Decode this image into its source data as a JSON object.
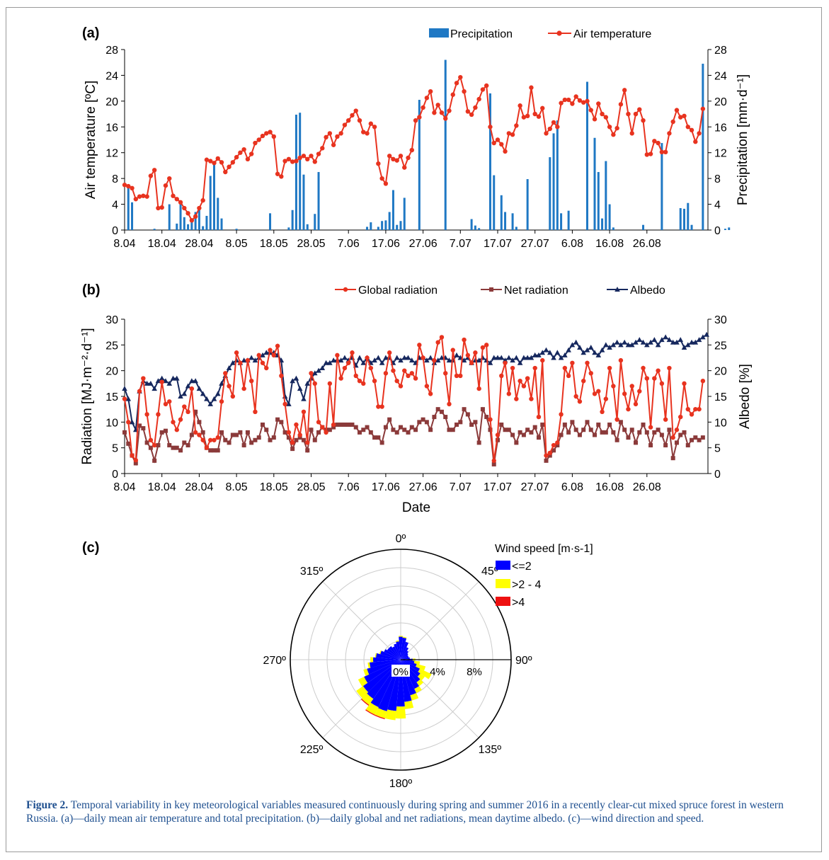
{
  "colors": {
    "precip": "#1f78c4",
    "temp": "#e8331f",
    "global": "#e8331f",
    "net": "#8b3a3a",
    "albedo": "#16285e",
    "wind_low": "#0000ff",
    "wind_mid": "#ffff00",
    "wind_high": "#ee1111",
    "caption": "#1e4f8f"
  },
  "date_ticks": [
    "8.04",
    "18.04",
    "28.04",
    "8.05",
    "18.05",
    "28.05",
    "7.06",
    "17.06",
    "27.06",
    "7.07",
    "17.07",
    "27.07",
    "6.08",
    "16.08",
    "26.08"
  ],
  "caption": {
    "label": "Figure 2.",
    "text": "Temporal variability in key meteorological variables measured continuously during spring and summer 2016 in a recently clear-cut mixed spruce forest in western Russia. (a)—daily mean air temperature and total precipitation. (b)—daily global and net radiations, mean daytime albedo. (c)—wind direction and speed."
  },
  "chart_data": [
    {
      "panel": "(a)",
      "type": "bar+line",
      "x_type": "date",
      "x_start": "8.04",
      "x_end": "26.08",
      "x_ticks": [
        "8.04",
        "18.04",
        "28.04",
        "8.05",
        "18.05",
        "28.05",
        "7.06",
        "17.06",
        "27.06",
        "7.07",
        "17.07",
        "27.07",
        "6.08",
        "16.08",
        "26.08"
      ],
      "ylabel": "Air temperature [ºC]",
      "y2label": "Precipitation [mm·d⁻¹]",
      "ylim": [
        0,
        28
      ],
      "y2lim": [
        0,
        28
      ],
      "yticks": [
        0,
        4,
        8,
        12,
        16,
        20,
        24,
        28
      ],
      "legend": [
        "Precipitation",
        "Air temperature"
      ],
      "series": [
        {
          "name": "Air temperature",
          "kind": "line",
          "values": [
            7.0,
            6.8,
            6.5,
            4.8,
            5.2,
            5.3,
            5.2,
            8.4,
            9.3,
            3.4,
            3.5,
            6.9,
            8.0,
            5.3,
            4.8,
            4.3,
            3.4,
            2.6,
            1.5,
            2.1,
            3.4,
            4.6,
            10.9,
            10.7,
            10.4,
            11.1,
            10.5,
            9.0,
            9.8,
            10.5,
            11.3,
            12.0,
            12.5,
            11.0,
            11.8,
            13.5,
            14.0,
            14.6,
            15.0,
            15.2,
            14.5,
            8.7,
            8.3,
            10.7,
            11.0,
            10.6,
            10.7,
            11.2,
            11.5,
            11.0,
            11.5,
            10.6,
            11.8,
            12.7,
            14.4,
            15.0,
            13.2,
            14.5,
            15.0,
            16.3,
            17.0,
            17.8,
            18.5,
            17.0,
            15.2,
            15.0,
            16.5,
            16.0,
            10.3,
            8.0,
            7.2,
            11.5,
            11.0,
            10.8,
            11.5,
            9.7,
            11.2,
            12.4,
            17.0,
            17.5,
            19.0,
            20.5,
            21.5,
            18.2,
            19.4,
            18.2,
            17.3,
            18.5,
            21.0,
            22.8,
            23.7,
            21.5,
            18.4,
            17.9,
            19.0,
            20.3,
            21.8,
            22.4,
            16.0,
            13.5,
            14.0,
            13.3,
            12.2,
            15.0,
            14.8,
            16.2,
            19.3,
            17.5,
            17.7,
            22.1,
            18.0,
            17.6,
            18.9,
            15.0,
            15.7,
            16.7,
            16.0,
            19.7,
            20.2,
            20.2,
            19.6,
            20.7,
            20.1,
            19.8,
            20.0,
            18.6,
            17.2,
            19.6,
            18.0,
            17.5,
            16.0,
            14.8,
            15.8,
            19.5,
            21.7,
            18.0,
            15.0,
            18.0,
            18.7,
            17.0,
            11.7,
            11.8,
            13.8,
            13.5,
            12.1,
            12.1,
            15.0,
            16.8,
            18.6,
            17.5,
            17.7,
            16.0,
            15.5,
            13.7,
            15.0,
            18.8
          ]
        },
        {
          "name": "Precipitation",
          "kind": "bar",
          "values": [
            0,
            6.5,
            4.3,
            0,
            0,
            0,
            0,
            0,
            0.2,
            0,
            0,
            0,
            4.0,
            0,
            1.0,
            4.2,
            2.0,
            0.9,
            1.7,
            2.8,
            3.6,
            0.6,
            2.2,
            8.4,
            10.3,
            5.0,
            1.8,
            0,
            0,
            0,
            0.2,
            0,
            0,
            0,
            0,
            0,
            0,
            0,
            0,
            2.6,
            0,
            0,
            0,
            0,
            0.4,
            3.1,
            17.9,
            18.2,
            8.6,
            0.9,
            0,
            2.5,
            9.0,
            0,
            0,
            0,
            0,
            0,
            0,
            0,
            0,
            0,
            0,
            0,
            0,
            0.5,
            1.2,
            0,
            0.5,
            1.4,
            1.5,
            2.8,
            6.2,
            0.8,
            1.4,
            5.0,
            0,
            0,
            0,
            20.2,
            0,
            0,
            0,
            0,
            0,
            0,
            26.4,
            0,
            0,
            0,
            0,
            0,
            0,
            1.7,
            0.7,
            0.3,
            0,
            0,
            21.2,
            8.5,
            0,
            5.4,
            2.8,
            0,
            2.6,
            0.5,
            0,
            0,
            7.9,
            0,
            0,
            0,
            0,
            0,
            11.3,
            15.0,
            17.0,
            2.6,
            0,
            3.0,
            0,
            0,
            0,
            0,
            23.0,
            0,
            14.3,
            9.0,
            1.8,
            10.7,
            4.0,
            0.4,
            0,
            0,
            0,
            0,
            0,
            0,
            0,
            0.8,
            0,
            0,
            0,
            0,
            13.5,
            0,
            0,
            0,
            0,
            3.4,
            3.3,
            4.2,
            0.8,
            0,
            0,
            25.8,
            0,
            0,
            0,
            0,
            0,
            0.2,
            0.4,
            0
          ]
        }
      ]
    },
    {
      "panel": "(b)",
      "type": "line",
      "x_type": "date",
      "x_start": "8.04",
      "x_end": "26.08",
      "x_ticks": [
        "8.04",
        "18.04",
        "28.04",
        "8.05",
        "18.05",
        "28.05",
        "7.06",
        "17.06",
        "27.06",
        "7.07",
        "17.07",
        "27.07",
        "6.08",
        "16.08",
        "26.08"
      ],
      "xlabel": "Date",
      "ylabel": "Radiation [MJ·m⁻²·d⁻¹]",
      "y2label": "Albedo [%]",
      "ylim": [
        0,
        30
      ],
      "y2lim": [
        0,
        30
      ],
      "yticks": [
        0,
        5,
        10,
        15,
        20,
        25,
        30
      ],
      "legend": [
        "Global radiation",
        "Net radiation",
        "Albedo"
      ],
      "series": [
        {
          "name": "Global radiation",
          "values": [
            14.5,
            10.0,
            3.5,
            2.6,
            16.0,
            18.5,
            11.5,
            6.5,
            5.5,
            11.5,
            17.8,
            13.5,
            14.0,
            10.0,
            8.5,
            10.5,
            13.0,
            12.0,
            16.5,
            8.0,
            7.5,
            6.5,
            5.0,
            6.5,
            6.5,
            7.0,
            14.0,
            19.5,
            17.0,
            15.0,
            23.5,
            21.5,
            16.5,
            22.0,
            18.0,
            12.0,
            23.0,
            21.5,
            20.5,
            24.0,
            23.0,
            24.8,
            19.0,
            13.5,
            8.0,
            6.0,
            9.5,
            7.5,
            12.0,
            6.0,
            19.5,
            17.5,
            10.0,
            9.0,
            8.0,
            17.5,
            9.5,
            23.0,
            18.5,
            20.5,
            21.5,
            23.5,
            19.0,
            18.0,
            17.5,
            22.5,
            20.5,
            18.0,
            13.0,
            13.0,
            19.5,
            23.5,
            20.0,
            18.0,
            17.0,
            20.0,
            19.0,
            19.5,
            18.5,
            25.0,
            22.5,
            17.0,
            15.5,
            22.0,
            25.5,
            26.5,
            19.5,
            13.5,
            24.0,
            19.0,
            19.0,
            26.0,
            23.0,
            21.5,
            23.5,
            16.5,
            24.5,
            25.0,
            10.5,
            2.5,
            7.5,
            19.0,
            21.5,
            15.5,
            20.5,
            14.5,
            18.0,
            17.0,
            18.5,
            14.5,
            20.5,
            11.0,
            22.0,
            3.5,
            4.0,
            5.5,
            6.0,
            11.5,
            20.5,
            19.0,
            21.5,
            15.0,
            14.0,
            18.0,
            21.5,
            19.5,
            15.5,
            16.0,
            12.0,
            14.5,
            20.5,
            17.0,
            10.5,
            22.0,
            15.5,
            12.5,
            17.0,
            13.5,
            16.0,
            20.5,
            18.5,
            9.0,
            18.5,
            20.0,
            17.5,
            10.5,
            20.5,
            7.0,
            8.5,
            11.0,
            17.5,
            12.5,
            11.5,
            12.5,
            12.5,
            18.0
          ]
        },
        {
          "name": "Net radiation",
          "values": [
            8.0,
            5.8,
            3.5,
            2.0,
            9.3,
            8.8,
            6.0,
            5.0,
            2.5,
            5.5,
            8.0,
            8.3,
            5.5,
            5.0,
            5.0,
            4.5,
            6.0,
            5.5,
            7.5,
            12.0,
            10.0,
            8.0,
            5.0,
            4.5,
            4.5,
            4.5,
            8.0,
            6.5,
            6.0,
            7.5,
            7.5,
            8.0,
            5.5,
            8.0,
            6.0,
            6.5,
            7.0,
            9.5,
            8.5,
            6.5,
            7.0,
            10.5,
            10.0,
            8.0,
            7.0,
            4.8,
            6.5,
            7.0,
            6.5,
            4.5,
            8.5,
            6.5,
            8.0,
            9.0,
            8.5,
            8.5,
            9.0,
            9.5,
            9.5,
            9.5,
            9.5,
            9.5,
            9.0,
            8.0,
            8.5,
            9.0,
            8.0,
            7.0,
            7.0,
            6.0,
            9.0,
            10.5,
            8.5,
            8.0,
            9.0,
            8.5,
            8.0,
            9.0,
            8.5,
            10.0,
            10.5,
            10.0,
            8.5,
            11.0,
            12.5,
            12.0,
            11.0,
            8.5,
            8.5,
            9.5,
            10.0,
            12.5,
            11.5,
            9.5,
            10.0,
            6.0,
            12.5,
            11.0,
            8.5,
            1.8,
            6.5,
            9.5,
            8.5,
            8.5,
            7.5,
            6.0,
            8.0,
            7.5,
            8.5,
            8.0,
            9.0,
            7.0,
            9.5,
            2.5,
            3.5,
            4.5,
            5.5,
            7.5,
            9.5,
            8.0,
            10.0,
            8.5,
            7.5,
            8.5,
            10.0,
            8.5,
            7.5,
            9.5,
            8.0,
            8.0,
            9.5,
            8.0,
            6.5,
            10.0,
            8.5,
            7.0,
            8.5,
            6.0,
            8.0,
            9.5,
            8.0,
            5.5,
            8.0,
            8.5,
            7.5,
            5.5,
            8.5,
            3.0,
            6.0,
            7.5,
            8.0,
            5.5,
            6.5,
            7.0,
            6.5,
            7.0
          ]
        },
        {
          "name": "Albedo",
          "values": [
            16.5,
            14.5,
            10.0,
            8.5,
            16.0,
            18.0,
            17.5,
            17.5,
            16.5,
            18.0,
            18.5,
            18.0,
            17.5,
            18.5,
            18.5,
            15.0,
            15.5,
            17.0,
            18.0,
            18.0,
            16.5,
            15.5,
            14.5,
            13.5,
            14.5,
            15.5,
            17.5,
            19.0,
            20.5,
            21.5,
            22.0,
            21.5,
            22.0,
            22.0,
            22.5,
            22.0,
            22.5,
            23.0,
            23.5,
            23.5,
            23.5,
            23.0,
            22.0,
            15.0,
            13.5,
            18.0,
            18.5,
            16.5,
            14.5,
            17.5,
            18.5,
            19.5,
            20.0,
            20.5,
            21.5,
            21.5,
            22.0,
            22.0,
            22.0,
            22.5,
            22.0,
            22.5,
            21.0,
            22.5,
            21.5,
            22.5,
            21.5,
            22.0,
            22.5,
            21.5,
            22.5,
            22.5,
            21.5,
            22.5,
            22.0,
            22.5,
            22.5,
            22.0,
            21.5,
            22.5,
            22.5,
            22.0,
            22.5,
            21.5,
            22.0,
            22.5,
            22.5,
            22.0,
            22.0,
            23.0,
            22.5,
            22.0,
            22.5,
            21.5,
            22.0,
            22.0,
            22.5,
            22.0,
            21.5,
            22.5,
            22.5,
            22.5,
            22.0,
            22.5,
            22.0,
            22.5,
            21.5,
            22.5,
            22.5,
            22.5,
            23.0,
            23.0,
            23.5,
            24.0,
            23.5,
            22.5,
            23.5,
            22.5,
            23.0,
            24.0,
            25.0,
            25.5,
            24.5,
            23.5,
            24.0,
            24.5,
            23.5,
            23.0,
            24.0,
            25.0,
            24.5,
            25.0,
            25.5,
            25.0,
            25.5,
            25.0,
            25.0,
            25.5,
            26.0,
            25.5,
            25.0,
            25.5,
            26.0,
            25.0,
            26.0,
            26.5,
            26.0,
            25.5,
            25.5,
            26.0,
            24.5,
            25.0,
            25.5,
            25.5,
            26.0,
            26.5,
            27.0
          ]
        }
      ]
    },
    {
      "panel": "(c)",
      "type": "wind-rose",
      "direction_labels": [
        "0º",
        "45º",
        "90º",
        "135º",
        "180º",
        "225º",
        "270º",
        "315º"
      ],
      "radial_ticks": [
        "0%",
        "4%",
        "8%"
      ],
      "r_max": 12,
      "legend_title": "Wind speed [m·s-1]",
      "legend": [
        "<=2",
        ">2 - 4",
        ">4"
      ],
      "sector_width_deg": 10,
      "series": [
        {
          "name": "<=2",
          "values": [
            2.5,
            2.4,
            2.0,
            1.5,
            1.2,
            1.0,
            0.9,
            0.9,
            1.0,
            1.3,
            1.5,
            1.8,
            2.3,
            2.6,
            3.0,
            3.5,
            4.0,
            4.6,
            5.1,
            5.6,
            5.8,
            5.7,
            5.2,
            5.0,
            4.4,
            3.8,
            3.4,
            3.0,
            2.7,
            2.3,
            2.0,
            1.8,
            1.8,
            1.6,
            1.8,
            2.0
          ]
        },
        {
          "name": ">2 - 4",
          "values": [
            0.1,
            0.1,
            0.0,
            0.0,
            0.0,
            0.0,
            0.0,
            0.0,
            0.0,
            0.3,
            0.6,
            1.0,
            1.4,
            0.6,
            0.5,
            0.5,
            0.6,
            0.8,
            1.3,
            1.0,
            0.8,
            0.9,
            0.8,
            0.9,
            0.7,
            0.4,
            0.2,
            0.3,
            0.1,
            0.1,
            0.0,
            0.0,
            0.0,
            0.0,
            0.0,
            0.1
          ]
        },
        {
          "name": ">4",
          "values": [
            0.0,
            0.0,
            0.0,
            0.0,
            0.0,
            0.0,
            0.0,
            0.0,
            0.0,
            0.0,
            0.0,
            0.0,
            0.0,
            0.0,
            0.0,
            0.0,
            0.0,
            0.0,
            0.0,
            0.0,
            0.1,
            0.1,
            0.1,
            0.0,
            0.0,
            0.0,
            0.0,
            0.0,
            0.0,
            0.0,
            0.0,
            0.0,
            0.0,
            0.0,
            0.0,
            0.0
          ]
        }
      ]
    }
  ]
}
